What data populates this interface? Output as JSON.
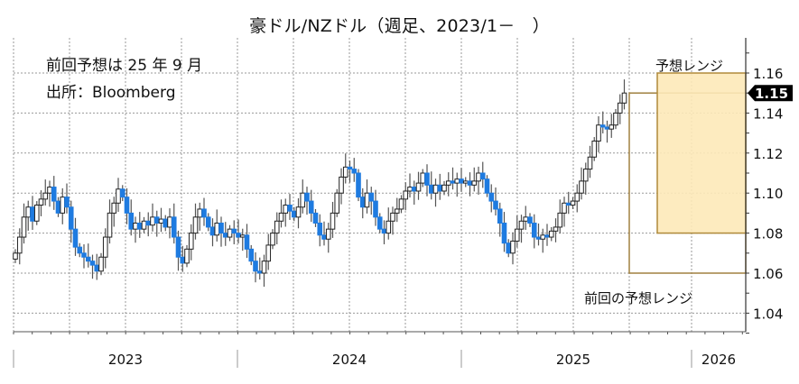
{
  "header": {
    "title": "豪ドル/NZドル（週足、2023/1－　）",
    "note_previous_forecast": "前回予想は 25 年 9 月",
    "note_source": "出所：Bloomberg"
  },
  "colors": {
    "up_body_fill": "#ffffff",
    "up_body_stroke": "#222222",
    "down_body_fill": "#1e7be0",
    "wick": "#555555",
    "grid": "#999999",
    "forecast_fill": "#fde9b8",
    "forecast_stroke": "#b08a3a",
    "prev_range_stroke": "#a08040",
    "last_price_bg": "#000000"
  },
  "chart_data": {
    "type": "candlestick",
    "title": "豪ドル/NZドル（週足、2023/1－　）",
    "xlabel": "",
    "ylabel": "",
    "ylim": [
      1.03,
      1.17
    ],
    "yticks": [
      1.04,
      1.06,
      1.08,
      1.1,
      1.12,
      1.14,
      1.16
    ],
    "ytick_labels": [
      "1.04",
      "1.06",
      "1.08",
      "1.10",
      "1.12",
      "1.14",
      "1.16"
    ],
    "x_year_labels": [
      "2023",
      "2024",
      "2025",
      "2026"
    ],
    "grid": true,
    "frequency": "weekly",
    "start": "2023-01",
    "last_price": 1.15,
    "last_price_label": "1.15",
    "closes": [
      1.07,
      1.078,
      1.088,
      1.093,
      1.086,
      1.094,
      1.097,
      1.1,
      1.103,
      1.096,
      1.09,
      1.098,
      1.093,
      1.082,
      1.073,
      1.07,
      1.068,
      1.066,
      1.064,
      1.061,
      1.068,
      1.078,
      1.09,
      1.095,
      1.102,
      1.098,
      1.09,
      1.082,
      1.085,
      1.082,
      1.086,
      1.084,
      1.088,
      1.085,
      1.087,
      1.083,
      1.088,
      1.078,
      1.068,
      1.065,
      1.072,
      1.08,
      1.088,
      1.092,
      1.088,
      1.083,
      1.079,
      1.085,
      1.08,
      1.078,
      1.082,
      1.08,
      1.078,
      1.079,
      1.072,
      1.066,
      1.061,
      1.06,
      1.066,
      1.074,
      1.08,
      1.086,
      1.09,
      1.094,
      1.091,
      1.088,
      1.093,
      1.1,
      1.096,
      1.09,
      1.085,
      1.079,
      1.077,
      1.082,
      1.09,
      1.1,
      1.108,
      1.113,
      1.112,
      1.11,
      1.098,
      1.093,
      1.1,
      1.096,
      1.088,
      1.082,
      1.08,
      1.086,
      1.09,
      1.092,
      1.097,
      1.101,
      1.103,
      1.101,
      1.105,
      1.11,
      1.104,
      1.1,
      1.104,
      1.101,
      1.104,
      1.106,
      1.105,
      1.107,
      1.105,
      1.106,
      1.104,
      1.106,
      1.11,
      1.107,
      1.1,
      1.096,
      1.092,
      1.085,
      1.075,
      1.07,
      1.076,
      1.082,
      1.086,
      1.088,
      1.085,
      1.078,
      1.077,
      1.079,
      1.078,
      1.081,
      1.083,
      1.09,
      1.095,
      1.094,
      1.096,
      1.1,
      1.106,
      1.112,
      1.118,
      1.126,
      1.134,
      1.133,
      1.132,
      1.134,
      1.14,
      1.145,
      1.15
    ],
    "series": [
      {
        "name": "AUD/NZD weekly candles",
        "values_ref": "closes"
      }
    ],
    "forecast_range": {
      "label": "予想レンジ",
      "low": 1.08,
      "high": 1.16,
      "x_start_index": 142,
      "x_end_index": 205
    },
    "previous_forecast_range": {
      "label": "前回の予想レンジ",
      "low": 1.06,
      "high": 1.15,
      "x_start_index": 122,
      "x_end_index": 205
    }
  },
  "annotations": {
    "forecast_range_label": "予想レンジ",
    "previous_range_label": "前回の予想レンジ"
  }
}
